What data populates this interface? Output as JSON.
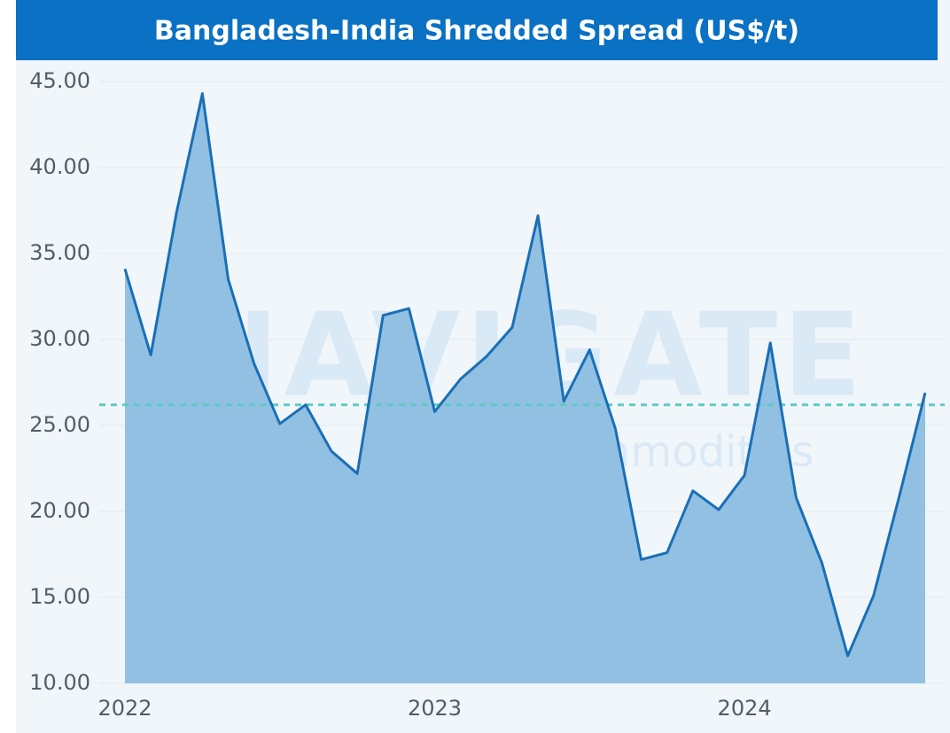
{
  "chart_data": {
    "type": "area",
    "title": "Bangladesh-India Shredded Spread (US$/t)",
    "watermark": [
      "NAVIGATE",
      "Commodities"
    ],
    "categories": [
      "2022",
      null,
      null,
      null,
      null,
      null,
      null,
      null,
      null,
      null,
      null,
      null,
      "2023",
      null,
      null,
      null,
      null,
      null,
      null,
      null,
      null,
      null,
      null,
      null,
      "2024",
      null,
      null,
      null,
      null,
      null,
      null,
      null
    ],
    "series": [
      {
        "color": "#1a6fb5",
        "fill": "#92c0e3",
        "values": [
          34.1,
          29.1,
          37.4,
          44.3,
          33.5,
          28.6,
          25.1,
          26.2,
          23.5,
          22.2,
          31.4,
          31.8,
          25.8,
          27.7,
          29.0,
          30.7,
          37.2,
          26.4,
          29.4,
          24.8,
          17.2,
          17.6,
          21.2,
          20.1,
          22.1,
          29.8,
          20.8,
          17.0,
          11.6,
          15.1,
          20.9,
          26.9
        ]
      }
    ],
    "reference_line": {
      "value": 26.2,
      "color": "#5ccbc3"
    },
    "ylim": [
      10,
      45
    ],
    "yticks": [
      {
        "value": 10,
        "label": "10.00"
      },
      {
        "value": 15,
        "label": "15.00"
      },
      {
        "value": 20,
        "label": "20.00"
      },
      {
        "value": 25,
        "label": "25.00"
      },
      {
        "value": 30,
        "label": "30.00"
      },
      {
        "value": 35,
        "label": "35.00"
      },
      {
        "value": 40,
        "label": "40.00"
      },
      {
        "value": 45,
        "label": "45.00"
      }
    ],
    "grid": true
  }
}
